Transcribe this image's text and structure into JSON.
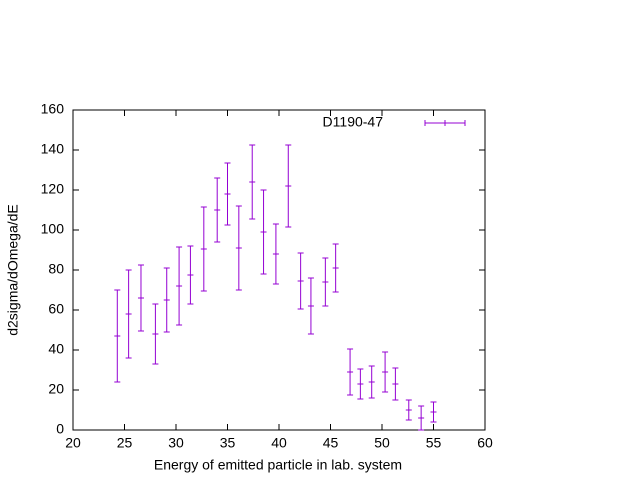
{
  "chart_data": {
    "type": "scatter",
    "x_label": "Energy of emitted particle in lab. system",
    "y_label": "d2sigma/dOmega/dE",
    "series": [
      {
        "name": "D1190-47",
        "color": "#9400d3",
        "x": [
          24.3,
          25.4,
          26.6,
          28.0,
          29.1,
          30.3,
          31.4,
          32.7,
          34.0,
          35.0,
          36.1,
          37.4,
          38.5,
          39.7,
          40.9,
          42.1,
          43.1,
          44.5,
          45.5,
          46.9,
          47.9,
          49.0,
          50.3,
          51.3,
          52.6,
          53.8,
          55.0
        ],
        "values": [
          47,
          58,
          66,
          48,
          65,
          72,
          77.5,
          90.5,
          110,
          118,
          91,
          124,
          99,
          88,
          122,
          74.5,
          62,
          74,
          81,
          29,
          23,
          24,
          29,
          23,
          10,
          6,
          9
        ],
        "errors": [
          23,
          22,
          16.5,
          15,
          16,
          19.5,
          14.5,
          21,
          16,
          15.5,
          21,
          18.5,
          21,
          15,
          20.5,
          14,
          14,
          12,
          12,
          11.5,
          7.5,
          8,
          10,
          8,
          5,
          6,
          5
        ]
      }
    ],
    "xlim": [
      20,
      60
    ],
    "xticks": [
      20,
      25,
      30,
      35,
      40,
      45,
      50,
      55,
      60
    ],
    "ylim": [
      0,
      160
    ],
    "yticks": [
      0,
      20,
      40,
      60,
      80,
      100,
      120,
      140,
      160
    ],
    "legend": "top-right"
  }
}
